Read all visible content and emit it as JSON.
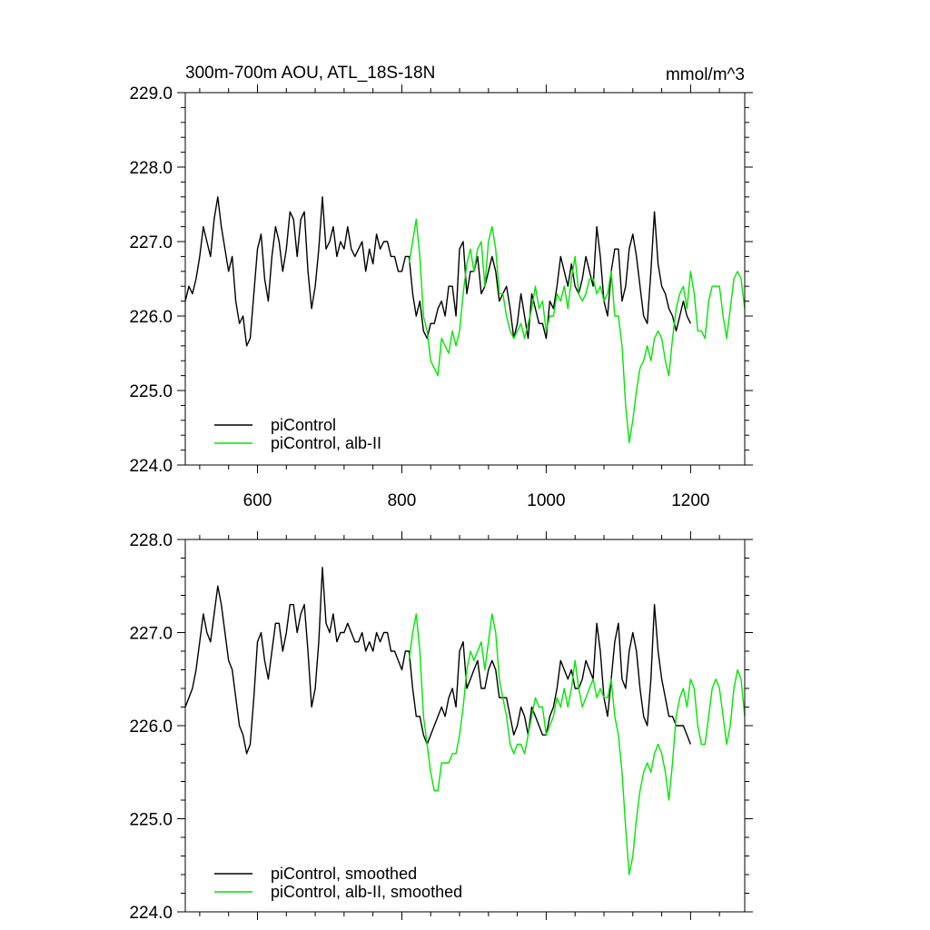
{
  "header": {
    "title": "300m-700m AOU, ATL_18S-18N",
    "units": "mmol/m^3"
  },
  "colors": {
    "picontrol": "#000000",
    "albii": "#00e600"
  },
  "chart_data": [
    {
      "type": "line",
      "id": "raw",
      "xlim": [
        500,
        1275
      ],
      "ylim": [
        224.0,
        229.0
      ],
      "x_ticks": [
        600,
        800,
        1000,
        1200
      ],
      "x_tick_labels": [
        "600",
        "800",
        "1000",
        "1200"
      ],
      "y_ticks": [
        224.0,
        225.0,
        226.0,
        227.0,
        228.0,
        229.0
      ],
      "y_tick_labels": [
        "224.0",
        "225.0",
        "226.0",
        "227.0",
        "228.0",
        "229.0"
      ],
      "legend_position": "bottom-left",
      "series": [
        {
          "name": "piControl",
          "color": "#000000",
          "x": [
            500,
            505,
            510,
            515,
            520,
            525,
            530,
            535,
            540,
            545,
            550,
            555,
            560,
            565,
            570,
            575,
            580,
            585,
            590,
            595,
            600,
            605,
            610,
            615,
            620,
            625,
            630,
            635,
            640,
            645,
            650,
            655,
            660,
            665,
            670,
            675,
            680,
            685,
            690,
            695,
            700,
            705,
            710,
            715,
            720,
            725,
            730,
            735,
            740,
            745,
            750,
            755,
            760,
            765,
            770,
            775,
            780,
            785,
            790,
            795,
            800,
            805,
            810,
            815,
            820,
            825,
            830,
            835,
            840,
            845,
            850,
            855,
            860,
            865,
            870,
            875,
            880,
            885,
            890,
            895,
            900,
            905,
            910,
            915,
            920,
            925,
            930,
            935,
            940,
            945,
            950,
            955,
            960,
            965,
            970,
            975,
            980,
            985,
            990,
            995,
            1000,
            1005,
            1010,
            1015,
            1020,
            1025,
            1030,
            1035,
            1040,
            1045,
            1050,
            1055,
            1060,
            1065,
            1070,
            1075,
            1080,
            1085,
            1090,
            1095,
            1100,
            1105,
            1110,
            1115,
            1120,
            1125,
            1130,
            1135,
            1140,
            1145,
            1150,
            1155,
            1160,
            1165,
            1170,
            1175,
            1180,
            1185,
            1190,
            1195,
            1200
          ],
          "values": [
            226.2,
            226.4,
            226.3,
            226.5,
            226.8,
            227.2,
            227.0,
            226.8,
            227.3,
            227.6,
            227.2,
            226.9,
            226.6,
            226.8,
            226.2,
            225.9,
            226.0,
            225.6,
            225.7,
            226.3,
            226.9,
            227.1,
            226.5,
            226.2,
            226.8,
            227.2,
            227.0,
            226.6,
            226.9,
            227.4,
            227.3,
            226.8,
            227.3,
            227.4,
            226.6,
            226.1,
            226.4,
            226.9,
            227.6,
            226.9,
            227.0,
            227.2,
            226.8,
            227.0,
            226.9,
            227.2,
            226.9,
            226.8,
            226.9,
            227.0,
            226.6,
            226.9,
            226.7,
            227.1,
            226.9,
            227.0,
            227.0,
            226.8,
            226.8,
            226.6,
            226.6,
            226.8,
            226.8,
            226.3,
            226.0,
            226.2,
            225.8,
            225.7,
            225.9,
            225.9,
            226.1,
            226.2,
            226.0,
            226.4,
            226.4,
            226.0,
            226.9,
            227.0,
            226.3,
            226.6,
            226.6,
            226.8,
            226.3,
            226.4,
            226.6,
            226.8,
            226.6,
            226.2,
            226.3,
            226.4,
            226.1,
            225.7,
            225.9,
            226.3,
            226.0,
            225.7,
            226.3,
            226.1,
            225.9,
            225.9,
            225.7,
            226.2,
            226.1,
            226.4,
            226.8,
            226.6,
            226.4,
            226.7,
            226.4,
            226.3,
            226.5,
            226.8,
            226.6,
            226.4,
            227.2,
            226.8,
            226.2,
            226.0,
            226.6,
            226.9,
            226.9,
            226.2,
            226.4,
            226.9,
            227.1,
            226.8,
            226.4,
            226.0,
            225.9,
            226.6,
            227.4,
            226.7,
            226.4,
            226.3,
            226.1,
            226.0,
            225.8,
            226.0,
            226.2,
            226.0,
            225.9
          ]
        },
        {
          "name": "piControl, alb-II",
          "color": "#00e600",
          "x": [
            810,
            815,
            820,
            825,
            830,
            835,
            840,
            845,
            850,
            855,
            860,
            865,
            870,
            875,
            880,
            885,
            890,
            895,
            900,
            905,
            910,
            915,
            920,
            925,
            930,
            935,
            940,
            945,
            950,
            955,
            960,
            965,
            970,
            975,
            980,
            985,
            990,
            995,
            1000,
            1005,
            1010,
            1015,
            1020,
            1025,
            1030,
            1035,
            1040,
            1045,
            1050,
            1055,
            1060,
            1065,
            1070,
            1075,
            1080,
            1085,
            1090,
            1095,
            1100,
            1105,
            1110,
            1115,
            1120,
            1125,
            1130,
            1135,
            1140,
            1145,
            1150,
            1155,
            1160,
            1165,
            1170,
            1175,
            1180,
            1185,
            1190,
            1195,
            1200,
            1205,
            1210,
            1215,
            1220,
            1225,
            1230,
            1235,
            1240,
            1245,
            1250,
            1255,
            1260,
            1265,
            1270,
            1275
          ],
          "values": [
            226.7,
            227.0,
            227.3,
            226.8,
            226.0,
            225.8,
            225.4,
            225.3,
            225.2,
            225.7,
            225.6,
            225.5,
            225.8,
            225.6,
            225.8,
            226.3,
            226.7,
            226.9,
            226.6,
            226.9,
            227.0,
            226.4,
            227.0,
            227.2,
            226.9,
            226.3,
            226.3,
            226.0,
            225.8,
            225.7,
            225.8,
            225.9,
            225.7,
            225.9,
            226.1,
            226.4,
            226.1,
            226.2,
            225.8,
            226.0,
            226.0,
            226.3,
            226.2,
            226.4,
            226.1,
            226.5,
            226.8,
            226.3,
            226.2,
            226.3,
            226.5,
            226.5,
            226.3,
            226.4,
            226.2,
            226.3,
            226.6,
            226.0,
            226.0,
            225.6,
            224.8,
            224.3,
            224.6,
            225.0,
            225.3,
            225.4,
            225.6,
            225.4,
            225.7,
            225.8,
            225.7,
            225.4,
            225.2,
            225.7,
            226.1,
            226.3,
            226.4,
            226.1,
            226.6,
            226.3,
            225.8,
            225.8,
            225.7,
            226.2,
            226.4,
            226.4,
            226.4,
            226.0,
            225.7,
            226.1,
            226.5,
            226.6,
            226.5,
            226.1
          ]
        }
      ]
    },
    {
      "type": "line",
      "id": "smoothed",
      "xlim": [
        500,
        1275
      ],
      "ylim": [
        224.0,
        228.0
      ],
      "x_ticks": [
        600,
        800,
        1000,
        1200
      ],
      "y_ticks": [
        224.0,
        225.0,
        226.0,
        227.0,
        228.0
      ],
      "y_tick_labels": [
        "224.0",
        "225.0",
        "226.0",
        "227.0",
        "228.0"
      ],
      "legend_position": "bottom-left",
      "series": [
        {
          "name": "piControl, smoothed",
          "color": "#000000",
          "x": [
            500,
            505,
            510,
            515,
            520,
            525,
            530,
            535,
            540,
            545,
            550,
            555,
            560,
            565,
            570,
            575,
            580,
            585,
            590,
            595,
            600,
            605,
            610,
            615,
            620,
            625,
            630,
            635,
            640,
            645,
            650,
            655,
            660,
            665,
            670,
            675,
            680,
            685,
            690,
            695,
            700,
            705,
            710,
            715,
            720,
            725,
            730,
            735,
            740,
            745,
            750,
            755,
            760,
            765,
            770,
            775,
            780,
            785,
            790,
            795,
            800,
            805,
            810,
            815,
            820,
            825,
            830,
            835,
            840,
            845,
            850,
            855,
            860,
            865,
            870,
            875,
            880,
            885,
            890,
            895,
            900,
            905,
            910,
            915,
            920,
            925,
            930,
            935,
            940,
            945,
            950,
            955,
            960,
            965,
            970,
            975,
            980,
            985,
            990,
            995,
            1000,
            1005,
            1010,
            1015,
            1020,
            1025,
            1030,
            1035,
            1040,
            1045,
            1050,
            1055,
            1060,
            1065,
            1070,
            1075,
            1080,
            1085,
            1090,
            1095,
            1100,
            1105,
            1110,
            1115,
            1120,
            1125,
            1130,
            1135,
            1140,
            1145,
            1150,
            1155,
            1160,
            1165,
            1170,
            1175,
            1180,
            1185,
            1190,
            1195,
            1200
          ],
          "values": [
            226.2,
            226.3,
            226.4,
            226.6,
            226.9,
            227.2,
            227.0,
            226.9,
            227.2,
            227.5,
            227.3,
            227.0,
            226.7,
            226.6,
            226.3,
            226.0,
            225.9,
            225.7,
            225.8,
            226.3,
            226.9,
            227.0,
            226.7,
            226.5,
            226.8,
            227.1,
            227.1,
            226.8,
            227.0,
            227.3,
            227.3,
            227.0,
            227.2,
            227.3,
            226.8,
            226.2,
            226.4,
            226.9,
            227.7,
            227.1,
            227.0,
            227.2,
            226.9,
            227.0,
            227.0,
            227.1,
            227.0,
            226.9,
            226.9,
            227.0,
            226.8,
            226.9,
            226.8,
            227.0,
            226.9,
            227.0,
            227.0,
            226.8,
            226.8,
            226.7,
            226.6,
            226.8,
            226.8,
            226.4,
            226.1,
            226.1,
            225.9,
            225.8,
            225.9,
            226.0,
            226.1,
            226.2,
            226.1,
            226.3,
            226.4,
            226.2,
            226.8,
            226.9,
            226.4,
            226.5,
            226.6,
            226.7,
            226.4,
            226.4,
            226.6,
            226.7,
            226.6,
            226.3,
            226.3,
            226.3,
            226.1,
            225.9,
            226.0,
            226.2,
            226.1,
            225.9,
            226.2,
            226.1,
            226.0,
            225.9,
            225.9,
            226.1,
            226.2,
            226.4,
            226.7,
            226.6,
            226.5,
            226.6,
            226.4,
            226.4,
            226.5,
            226.7,
            226.6,
            226.5,
            227.1,
            226.8,
            226.3,
            226.1,
            226.5,
            226.9,
            227.1,
            226.5,
            226.4,
            226.8,
            227.0,
            226.8,
            226.4,
            226.1,
            226.0,
            226.5,
            227.3,
            226.8,
            226.5,
            226.3,
            226.1,
            226.1,
            226.0,
            226.0,
            226.0,
            225.9,
            225.8
          ]
        },
        {
          "name": "piControl, alb-II, smoothed",
          "color": "#00e600",
          "x": [
            810,
            815,
            820,
            825,
            830,
            835,
            840,
            845,
            850,
            855,
            860,
            865,
            870,
            875,
            880,
            885,
            890,
            895,
            900,
            905,
            910,
            915,
            920,
            925,
            930,
            935,
            940,
            945,
            950,
            955,
            960,
            965,
            970,
            975,
            980,
            985,
            990,
            995,
            1000,
            1005,
            1010,
            1015,
            1020,
            1025,
            1030,
            1035,
            1040,
            1045,
            1050,
            1055,
            1060,
            1065,
            1070,
            1075,
            1080,
            1085,
            1090,
            1095,
            1100,
            1105,
            1110,
            1115,
            1120,
            1125,
            1130,
            1135,
            1140,
            1145,
            1150,
            1155,
            1160,
            1165,
            1170,
            1175,
            1180,
            1185,
            1190,
            1195,
            1200,
            1205,
            1210,
            1215,
            1220,
            1225,
            1230,
            1235,
            1240,
            1245,
            1250,
            1255,
            1260,
            1265,
            1270,
            1275
          ],
          "values": [
            226.7,
            227.0,
            227.2,
            226.8,
            226.1,
            225.8,
            225.5,
            225.3,
            225.3,
            225.6,
            225.6,
            225.6,
            225.7,
            225.7,
            225.9,
            226.2,
            226.6,
            226.8,
            226.7,
            226.8,
            226.9,
            226.6,
            226.9,
            227.2,
            227.0,
            226.5,
            226.3,
            226.1,
            225.8,
            225.7,
            225.8,
            225.8,
            225.7,
            225.9,
            226.1,
            226.3,
            226.2,
            226.2,
            225.9,
            226.0,
            226.1,
            226.3,
            226.2,
            226.4,
            226.2,
            226.4,
            226.7,
            226.4,
            226.2,
            226.3,
            226.4,
            226.5,
            226.3,
            226.4,
            226.3,
            226.3,
            226.5,
            226.1,
            225.9,
            225.5,
            224.9,
            224.4,
            224.6,
            225.0,
            225.3,
            225.5,
            225.6,
            225.5,
            225.7,
            225.8,
            225.7,
            225.5,
            225.2,
            225.6,
            226.1,
            226.3,
            226.4,
            226.2,
            226.5,
            226.4,
            226.0,
            225.8,
            225.8,
            226.1,
            226.4,
            226.5,
            226.4,
            226.1,
            225.8,
            226.0,
            226.4,
            226.6,
            226.5,
            226.1
          ]
        }
      ]
    }
  ]
}
